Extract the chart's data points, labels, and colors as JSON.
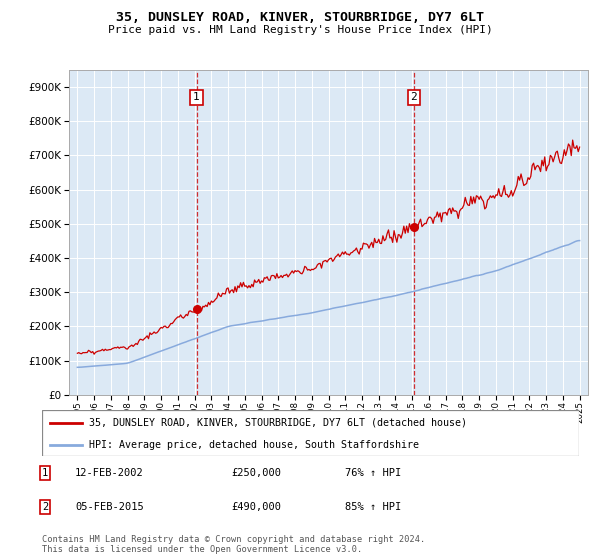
{
  "title": "35, DUNSLEY ROAD, KINVER, STOURBRIDGE, DY7 6LT",
  "subtitle": "Price paid vs. HM Land Registry's House Price Index (HPI)",
  "fig_facecolor": "#ffffff",
  "plot_bg_color": "#dce9f5",
  "ytick_values": [
    0,
    100000,
    200000,
    300000,
    400000,
    500000,
    600000,
    700000,
    800000,
    900000
  ],
  "ylim": [
    0,
    950000
  ],
  "xlim": [
    1994.5,
    2025.5
  ],
  "marker1": {
    "year": 2002.12,
    "value": 250000,
    "label": "1",
    "date": "12-FEB-2002",
    "price": "£250,000",
    "hpi": "76% ↑ HPI"
  },
  "marker2": {
    "year": 2015.09,
    "value": 490000,
    "label": "2",
    "date": "05-FEB-2015",
    "price": "£490,000",
    "hpi": "85% ↑ HPI"
  },
  "legend1_label": "35, DUNSLEY ROAD, KINVER, STOURBRIDGE, DY7 6LT (detached house)",
  "legend2_label": "HPI: Average price, detached house, South Staffordshire",
  "footer": "Contains HM Land Registry data © Crown copyright and database right 2024.\nThis data is licensed under the Open Government Licence v3.0.",
  "line_color_house": "#cc0000",
  "line_color_hpi": "#88aadd",
  "grid_color": "#ffffff"
}
